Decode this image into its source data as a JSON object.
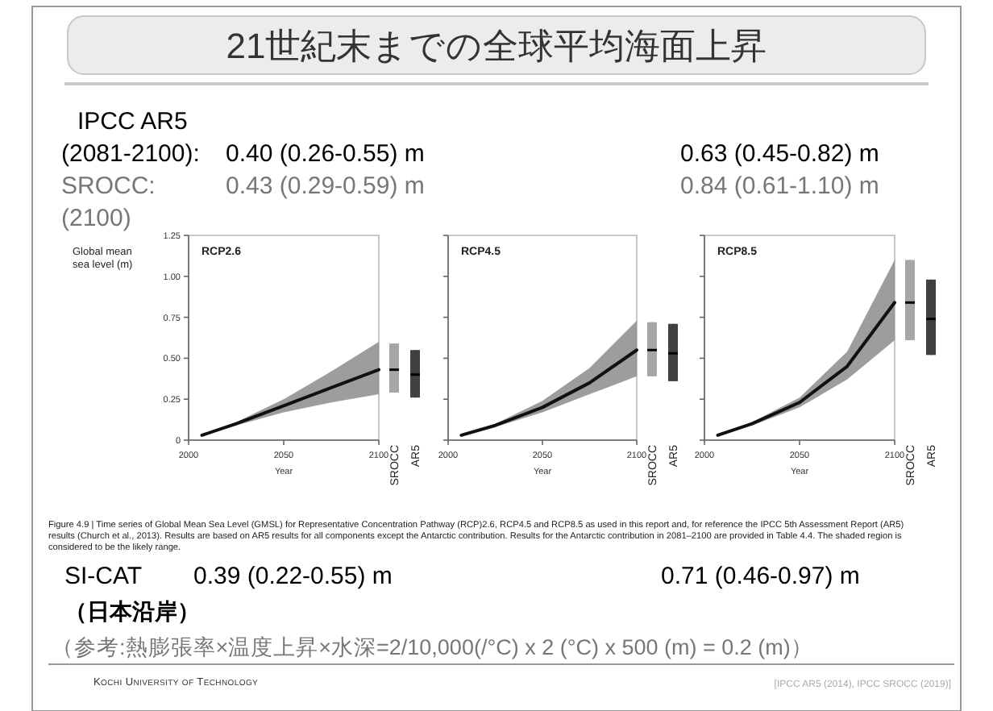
{
  "chart_data": [
    {
      "type": "other",
      "title": "21世紀末までの全球平均海面上昇",
      "annotations": [
        "IPCC AR5",
        "(2081-2100):",
        "0.40 (0.26-0.55) m",
        "0.63 (0.45-0.82) m",
        "SROCC:",
        "0.43 (0.29-0.59) m",
        "0.84 (0.61-1.10) m",
        "(2100)",
        "Figure 4.9 | Time series of Global Mean Sea Level (GMSL) for Representative Concentration Pathway (RCP)2.6, RCP4.5 and RCP8.5 as used in this report and, for reference the IPCC 5th Assessment Report (AR5) results (Church et al., 2013). Results are based on AR5 results for all components except the Antarctic contribution. Results for the Antarctic contribution in 2081–2100 are provided in Table 4.4. The shaded region is considered to be the likely range.",
        "SI-CAT",
        "0.39 (0.22-0.55) m",
        "0.71 (0.46-0.97) m",
        "（日本沿岸）",
        "（参考:熱膨張率×温度上昇×水深=2/10,000(/°C) x 2 (°C) x 500 (m) = 0.2 (m)）",
        "Kochi University of Technology",
        "[IPCC AR5 (2014), IPCC SROCC (2019)]"
      ]
    },
    {
      "type": "line",
      "title": "RCP2.6",
      "xlabel": "Year",
      "ylabel": "Global mean sea level (m)",
      "xlim": [
        2000,
        2100
      ],
      "xticks": [
        2000,
        2050,
        2100
      ],
      "ylim": [
        0,
        1.25
      ],
      "yticks": [
        0,
        {
          "value": 0.25,
          "label": "0.25"
        },
        {
          "value": 0.5,
          "label": "0.50"
        },
        {
          "value": 0.75,
          "label": "0.75"
        },
        {
          "value": 1,
          "label": "1.00"
        },
        {
          "value": 1.25,
          "label": "1.25"
        }
      ],
      "series": [
        {
          "color": "#111111",
          "x": [
            2007,
            2025,
            2050,
            2075,
            2100
          ],
          "values": [
            0.03,
            0.1,
            0.21,
            0.32,
            0.43
          ],
          "lower": [
            0.03,
            0.09,
            0.17,
            0.23,
            0.28
          ],
          "upper": [
            0.03,
            0.11,
            0.25,
            0.42,
            0.6
          ]
        }
      ]
    },
    {
      "type": "box",
      "categories": [
        "SROCC",
        "AR5"
      ],
      "colors": [
        "#a6a6a6",
        "#404040"
      ],
      "ylim": [
        0,
        1.25
      ],
      "tick_labels": "x",
      "boxes": [
        {
          "low": 0.29,
          "q1": 0.29,
          "median": 0.43,
          "q3": 0.59,
          "high": 0.59
        },
        {
          "low": 0.26,
          "q1": 0.26,
          "median": 0.4,
          "q3": 0.55,
          "high": 0.55
        }
      ]
    },
    {
      "type": "line",
      "title": "RCP4.5",
      "xlabel": "Year",
      "xlim": [
        2000,
        2100
      ],
      "xticks": [
        2000,
        2050,
        2100
      ],
      "ylim": [
        0,
        1.25
      ],
      "yticks": [
        0,
        0.25,
        0.5,
        0.75,
        1,
        1.25
      ],
      "tick_labels": "x",
      "series": [
        {
          "color": "#111111",
          "x": [
            2007,
            2025,
            2050,
            2075,
            2100
          ],
          "values": [
            0.03,
            0.09,
            0.2,
            0.35,
            0.55
          ],
          "lower": [
            0.03,
            0.08,
            0.17,
            0.28,
            0.39
          ],
          "upper": [
            0.03,
            0.1,
            0.24,
            0.44,
            0.73
          ]
        }
      ]
    },
    {
      "type": "box",
      "categories": [
        "SROCC",
        "AR5"
      ],
      "colors": [
        "#a6a6a6",
        "#404040"
      ],
      "ylim": [
        0,
        1.25
      ],
      "tick_labels": "x",
      "boxes": [
        {
          "low": 0.39,
          "q1": 0.39,
          "median": 0.55,
          "q3": 0.72,
          "high": 0.72
        },
        {
          "low": 0.36,
          "q1": 0.36,
          "median": 0.53,
          "q3": 0.71,
          "high": 0.71
        }
      ]
    },
    {
      "type": "line",
      "title": "RCP8.5",
      "xlabel": "Year",
      "xlim": [
        2000,
        2100
      ],
      "xticks": [
        2000,
        2050,
        2100
      ],
      "ylim": [
        0,
        1.25
      ],
      "yticks": [
        0,
        0.25,
        0.5,
        0.75,
        1,
        1.25
      ],
      "tick_labels": "x",
      "series": [
        {
          "color": "#111111",
          "x": [
            2007,
            2025,
            2050,
            2075,
            2100
          ],
          "values": [
            0.03,
            0.1,
            0.23,
            0.45,
            0.84
          ],
          "lower": [
            0.03,
            0.09,
            0.2,
            0.37,
            0.61
          ],
          "upper": [
            0.03,
            0.11,
            0.26,
            0.54,
            1.1
          ]
        }
      ]
    },
    {
      "type": "box",
      "categories": [
        "SROCC",
        "AR5"
      ],
      "colors": [
        "#a6a6a6",
        "#404040"
      ],
      "ylim": [
        0,
        1.25
      ],
      "tick_labels": "x",
      "boxes": [
        {
          "low": 0.61,
          "q1": 0.61,
          "median": 0.84,
          "q3": 1.1,
          "high": 1.1
        },
        {
          "low": 0.52,
          "q1": 0.52,
          "median": 0.74,
          "q3": 0.98,
          "high": 0.98
        }
      ]
    }
  ]
}
